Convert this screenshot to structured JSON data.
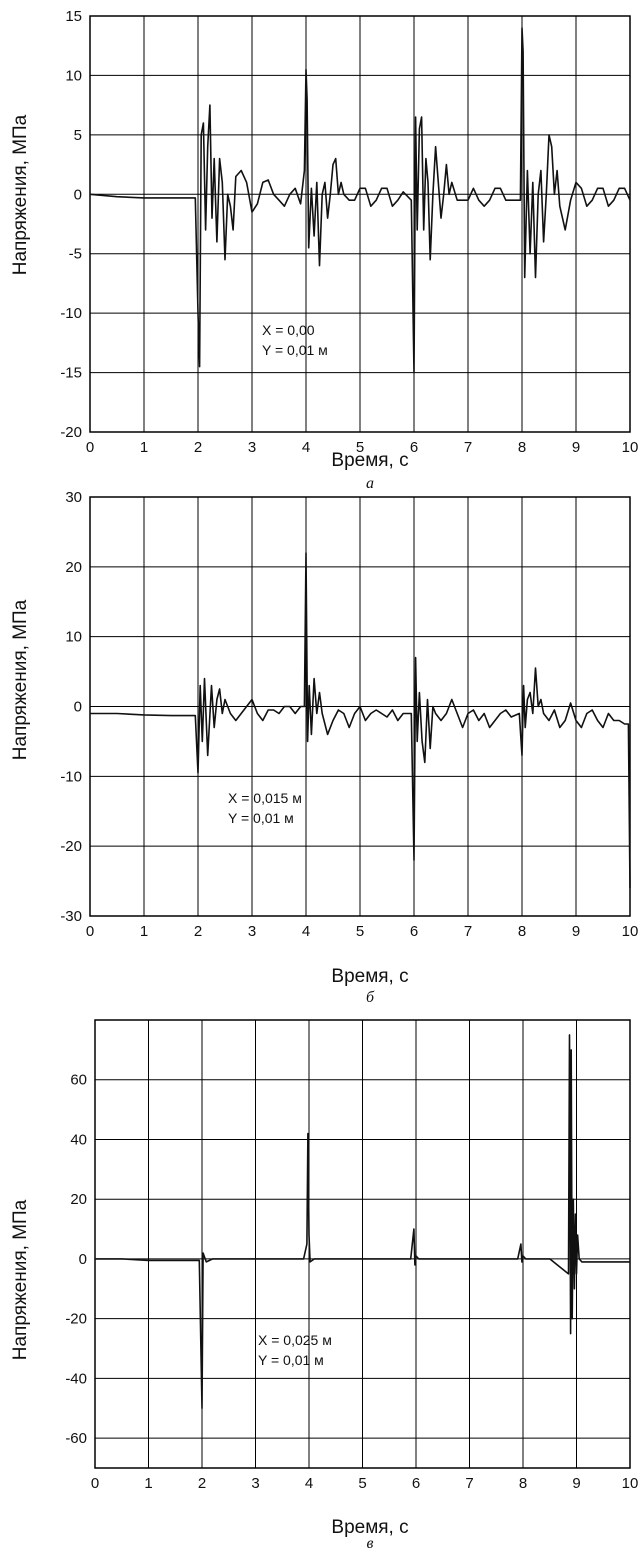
{
  "chart_data": [
    {
      "type": "line",
      "caption": "а",
      "xlabel": "Время, с",
      "ylabel": "Напряжения, МПа",
      "xlim": [
        0,
        10
      ],
      "ylim": [
        -20,
        15
      ],
      "xticks": [
        0,
        1,
        2,
        3,
        4,
        5,
        6,
        7,
        8,
        9,
        10
      ],
      "yticks": [
        -20,
        -15,
        -10,
        -5,
        0,
        5,
        10,
        15
      ],
      "grid": true,
      "annotation": [
        "X = 0,00",
        "Y = 0,01 м"
      ],
      "series": [
        {
          "x": [
            0,
            0.5,
            1.0,
            1.5,
            1.95,
            2.0,
            2.03,
            2.06,
            2.1,
            2.14,
            2.18,
            2.22,
            2.26,
            2.3,
            2.35,
            2.4,
            2.45,
            2.5,
            2.55,
            2.6,
            2.65,
            2.7,
            2.8,
            2.9,
            3.0,
            3.1,
            3.2,
            3.3,
            3.4,
            3.5,
            3.6,
            3.7,
            3.8,
            3.9,
            3.97,
            4.0,
            4.02,
            4.05,
            4.1,
            4.15,
            4.2,
            4.25,
            4.3,
            4.35,
            4.4,
            4.45,
            4.5,
            4.55,
            4.6,
            4.65,
            4.7,
            4.8,
            4.9,
            5.0,
            5.1,
            5.2,
            5.3,
            5.4,
            5.5,
            5.6,
            5.7,
            5.8,
            5.95,
            6.0,
            6.03,
            6.06,
            6.1,
            6.14,
            6.18,
            6.22,
            6.26,
            6.3,
            6.35,
            6.4,
            6.45,
            6.5,
            6.55,
            6.6,
            6.65,
            6.7,
            6.8,
            6.9,
            7.0,
            7.1,
            7.2,
            7.3,
            7.4,
            7.5,
            7.6,
            7.7,
            7.8,
            7.9,
            7.97,
            8.0,
            8.02,
            8.05,
            8.1,
            8.15,
            8.2,
            8.25,
            8.3,
            8.35,
            8.4,
            8.45,
            8.5,
            8.55,
            8.6,
            8.65,
            8.7,
            8.8,
            8.9,
            9.0,
            9.1,
            9.2,
            9.3,
            9.4,
            9.5,
            9.6,
            9.7,
            9.8,
            9.9,
            10.0
          ],
          "y": [
            0,
            -0.2,
            -0.3,
            -0.3,
            -0.3,
            -10,
            -14.5,
            5,
            6,
            -3,
            4,
            7.5,
            -2,
            3,
            -4,
            3,
            1,
            -5.5,
            0,
            -1,
            -3,
            1.5,
            2,
            1,
            -1.5,
            -0.8,
            1,
            1.2,
            0,
            -0.5,
            -1,
            0,
            0.5,
            -0.8,
            2,
            10.5,
            8,
            -4.5,
            0.5,
            -3.5,
            1,
            -6,
            0,
            1,
            -2,
            0,
            2.5,
            3,
            0,
            1,
            0,
            -0.5,
            -0.5,
            0.5,
            0.5,
            -1,
            -0.5,
            0.5,
            0.5,
            -1,
            -0.5,
            0.2,
            -0.5,
            -15,
            6.5,
            -3,
            5.5,
            6.5,
            -3,
            3,
            1,
            -5.5,
            0,
            4,
            1,
            -2,
            0,
            2.5,
            0,
            1,
            -0.5,
            -0.5,
            -0.5,
            0.5,
            -0.5,
            -1,
            -0.5,
            0.5,
            0.5,
            -0.5,
            -0.5,
            -0.5,
            -0.5,
            14,
            12,
            -7,
            2,
            -5,
            1,
            -7,
            0,
            2,
            -4,
            0,
            5,
            4,
            0,
            2,
            -1,
            -3,
            -0.5,
            1,
            0.5,
            -1,
            -0.5,
            0.5,
            0.5,
            -1,
            -0.5,
            0.5,
            0.5,
            -0.5
          ]
        }
      ]
    },
    {
      "type": "line",
      "caption": "б",
      "xlabel": "Время, с",
      "ylabel": "Напряжения, МПа",
      "xlim": [
        0,
        10
      ],
      "ylim": [
        -30,
        30
      ],
      "xticks": [
        0,
        1,
        2,
        3,
        4,
        5,
        6,
        7,
        8,
        9,
        10
      ],
      "yticks": [
        -30,
        -20,
        -10,
        0,
        10,
        20,
        30
      ],
      "grid": true,
      "annotation": [
        "X = 0,015 м",
        "Y = 0,01 м"
      ],
      "series": [
        {
          "x": [
            0,
            0.5,
            1.0,
            1.5,
            1.95,
            2.0,
            2.04,
            2.08,
            2.12,
            2.18,
            2.25,
            2.3,
            2.35,
            2.4,
            2.45,
            2.5,
            2.6,
            2.7,
            2.8,
            2.9,
            3.0,
            3.1,
            3.2,
            3.3,
            3.4,
            3.5,
            3.6,
            3.7,
            3.8,
            3.9,
            3.97,
            4.0,
            4.03,
            4.06,
            4.1,
            4.15,
            4.2,
            4.25,
            4.3,
            4.4,
            4.5,
            4.6,
            4.7,
            4.8,
            4.9,
            5.0,
            5.1,
            5.2,
            5.3,
            5.4,
            5.5,
            5.6,
            5.7,
            5.8,
            5.95,
            6.0,
            6.03,
            6.06,
            6.1,
            6.15,
            6.2,
            6.25,
            6.3,
            6.35,
            6.4,
            6.5,
            6.6,
            6.7,
            6.8,
            6.9,
            7.0,
            7.1,
            7.2,
            7.3,
            7.4,
            7.5,
            7.6,
            7.7,
            7.8,
            7.95,
            8.0,
            8.03,
            8.06,
            8.1,
            8.15,
            8.2,
            8.25,
            8.3,
            8.35,
            8.4,
            8.5,
            8.6,
            8.7,
            8.8,
            8.9,
            9.0,
            9.1,
            9.2,
            9.3,
            9.4,
            9.5,
            9.6,
            9.7,
            9.8,
            9.9,
            9.97,
            10.0
          ],
          "y": [
            -1,
            -1,
            -1.2,
            -1.3,
            -1.3,
            -9.5,
            3,
            -5,
            4,
            -7,
            3,
            -3,
            1,
            2.5,
            -1,
            1,
            -1,
            -2,
            -1,
            0,
            1,
            -1,
            -2,
            -0.5,
            -0.5,
            -1,
            0,
            0,
            -1,
            0,
            0,
            22,
            -5,
            3,
            -4,
            4,
            -1,
            2,
            -1,
            -4,
            -2,
            -0.5,
            -1,
            -3,
            -1,
            0,
            -2,
            -1,
            -0.5,
            -1,
            -1.5,
            -0.5,
            -2,
            -1,
            -1,
            -22,
            7,
            -5,
            2,
            -5,
            -8,
            1,
            -6,
            0,
            -1,
            -2,
            -1,
            1,
            -1,
            -3,
            -1,
            -0.5,
            -2,
            -1,
            -3,
            -2,
            -1,
            -0.5,
            -1.5,
            -1,
            -7,
            3,
            -3,
            1,
            2,
            -1,
            5.5,
            0,
            1,
            -1,
            -2,
            -0.5,
            -3,
            -2,
            0.5,
            -2,
            -3,
            -1,
            -0.5,
            -2,
            -3,
            -1,
            -2,
            -2,
            -2.5,
            -2.5,
            -26
          ]
        }
      ]
    },
    {
      "type": "line",
      "caption": "в",
      "xlabel": "Время, с",
      "ylabel": "Напряжения, МПа",
      "xlim": [
        0,
        10
      ],
      "ylim": [
        -70,
        80
      ],
      "xticks": [
        0,
        1,
        2,
        3,
        4,
        5,
        6,
        7,
        8,
        9,
        10
      ],
      "yticks": [
        -60,
        -40,
        -20,
        0,
        20,
        40,
        60
      ],
      "grid": true,
      "annotation": [
        "X = 0,025 м",
        "Y = 0,01 м"
      ],
      "series": [
        {
          "x": [
            0,
            0.5,
            1.0,
            1.5,
            1.95,
            2.0,
            2.02,
            2.04,
            2.08,
            2.2,
            3.0,
            3.9,
            3.96,
            3.98,
            4.0,
            4.02,
            4.1,
            5.0,
            5.9,
            5.96,
            5.98,
            6.0,
            6.05,
            7.0,
            7.9,
            7.96,
            7.98,
            8.0,
            8.05,
            8.5,
            8.85,
            8.87,
            8.89,
            8.9,
            8.92,
            8.94,
            8.96,
            8.98,
            9.0,
            9.02,
            9.05,
            9.1,
            9.5,
            10.0
          ],
          "y": [
            0,
            0,
            -0.5,
            -0.5,
            -0.5,
            -50,
            2,
            1,
            -1,
            0,
            0,
            0,
            5,
            42,
            8,
            -1,
            0,
            0,
            0,
            10,
            -2,
            1,
            0,
            0,
            0,
            5,
            -1,
            1,
            0,
            0,
            -5,
            75,
            -25,
            70,
            -20,
            20,
            -10,
            15,
            -5,
            8,
            0,
            -1,
            -1,
            -1
          ]
        }
      ]
    }
  ]
}
